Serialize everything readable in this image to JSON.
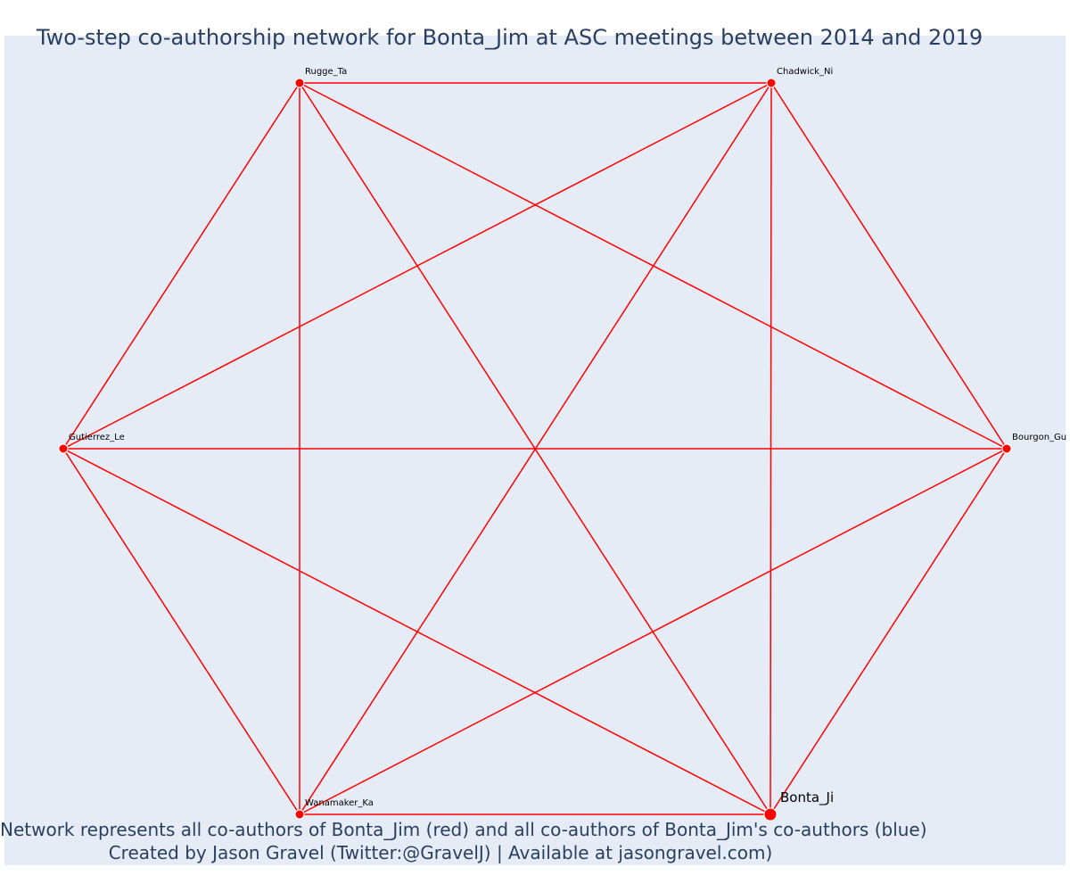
{
  "title": "Two-step co-authorship network for Bonta_Jim at ASC meetings between 2014 and 2019",
  "caption": {
    "line1": "Network represents all co-authors of Bonta_Jim (red) and all co-authors of Bonta_Jim's co-authors (blue)",
    "line2": "Created by Jason Gravel (Twitter:@GravelJ) | Available at jasongravel.com)"
  },
  "colors": {
    "background": "#e5ecf6",
    "edge": "#ff0000",
    "node": "#ff0000",
    "node_outline": "#ffffff",
    "text": "#2a3f5f"
  },
  "network": {
    "focal_node": "Bonta_Ji",
    "nodes": [
      {
        "id": "Rugge_Ta",
        "label": "Rugge_Ta",
        "group": "co-author"
      },
      {
        "id": "Chadwick_Ni",
        "label": "Chadwick_Ni",
        "group": "co-author"
      },
      {
        "id": "Gutierrez_Le",
        "label": "Gutierrez_Le",
        "group": "co-author"
      },
      {
        "id": "Bourgon_Gu",
        "label": "Bourgon_Gu",
        "group": "co-author"
      },
      {
        "id": "Wanamaker_Ka",
        "label": "Wanamaker_Ka",
        "group": "co-author"
      },
      {
        "id": "Bonta_Ji",
        "label": "Bonta_Ji",
        "group": "focal"
      }
    ],
    "edges": [
      [
        "Rugge_Ta",
        "Chadwick_Ni"
      ],
      [
        "Rugge_Ta",
        "Gutierrez_Le"
      ],
      [
        "Rugge_Ta",
        "Bourgon_Gu"
      ],
      [
        "Rugge_Ta",
        "Wanamaker_Ka"
      ],
      [
        "Rugge_Ta",
        "Bonta_Ji"
      ],
      [
        "Chadwick_Ni",
        "Gutierrez_Le"
      ],
      [
        "Chadwick_Ni",
        "Bourgon_Gu"
      ],
      [
        "Chadwick_Ni",
        "Wanamaker_Ka"
      ],
      [
        "Chadwick_Ni",
        "Bonta_Ji"
      ],
      [
        "Gutierrez_Le",
        "Bourgon_Gu"
      ],
      [
        "Gutierrez_Le",
        "Wanamaker_Ka"
      ],
      [
        "Gutierrez_Le",
        "Bonta_Ji"
      ],
      [
        "Bourgon_Gu",
        "Wanamaker_Ka"
      ],
      [
        "Bourgon_Gu",
        "Bonta_Ji"
      ],
      [
        "Wanamaker_Ka",
        "Bonta_Ji"
      ]
    ]
  }
}
